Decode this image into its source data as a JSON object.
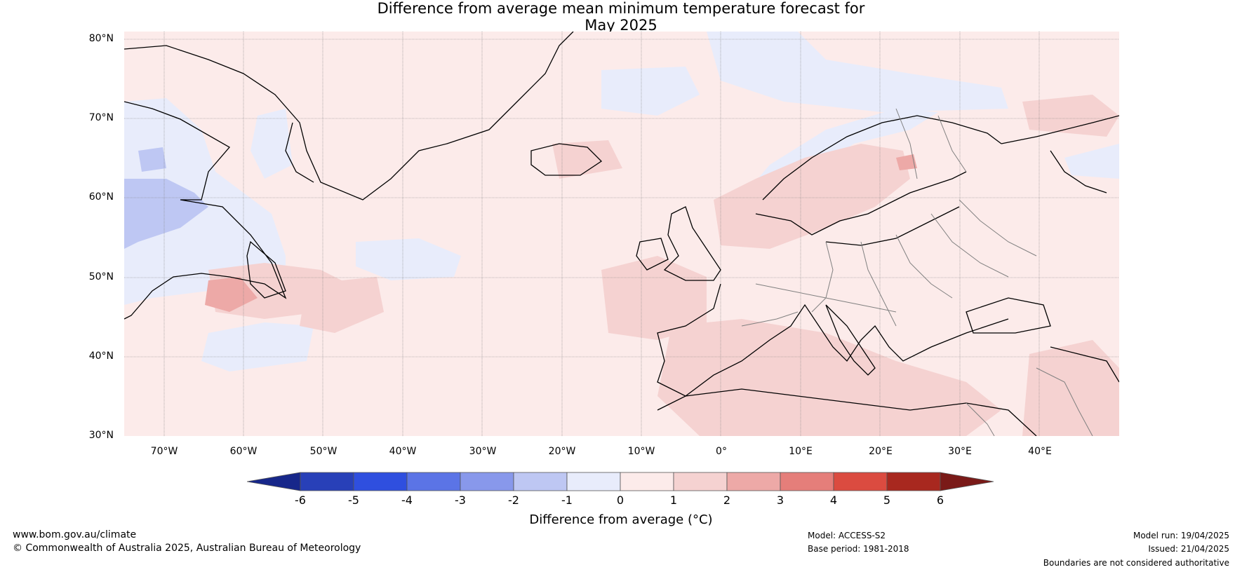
{
  "title": {
    "line1": "Difference from average mean minimum temperature forecast for",
    "line2": "May 2025"
  },
  "map": {
    "lat_labels": [
      "80°N",
      "70°N",
      "60°N",
      "50°N",
      "40°N",
      "30°N"
    ],
    "lon_labels": [
      "70°W",
      "60°W",
      "50°W",
      "40°W",
      "30°W",
      "20°W",
      "10°W",
      "0°",
      "10°E",
      "20°E",
      "30°E",
      "40°E"
    ],
    "lat_range": [
      30,
      80
    ],
    "lon_range": [
      -75,
      50
    ],
    "background_color": "#fcebea",
    "land_outline_color": "#000000",
    "border_color": "#808080"
  },
  "colorbar": {
    "label": "Difference from average (°C)",
    "ticks": [
      "-6",
      "-5",
      "-4",
      "-3",
      "-2",
      "-1",
      "0",
      "1",
      "2",
      "3",
      "4",
      "5",
      "6"
    ],
    "colors": [
      "#17278a",
      "#2840b8",
      "#2f4fdf",
      "#5b74e6",
      "#8898eb",
      "#bec7f3",
      "#e8ecfb",
      "#fcebea",
      "#f5d2d1",
      "#eda9a7",
      "#e57e7a",
      "#db4b40",
      "#a8281f",
      "#7a1a18"
    ]
  },
  "footer": {
    "website": "www.bom.gov.au/climate",
    "copyright": "© Commonwealth of Australia 2025, Australian Bureau of Meteorology",
    "model": "Model: ACCESS-S2",
    "base_period": "Base period: 1981-2018",
    "model_run": "Model run: 19/04/2025",
    "issued": "Issued: 21/04/2025",
    "disclaimer": "Boundaries are not considered authoritative"
  }
}
